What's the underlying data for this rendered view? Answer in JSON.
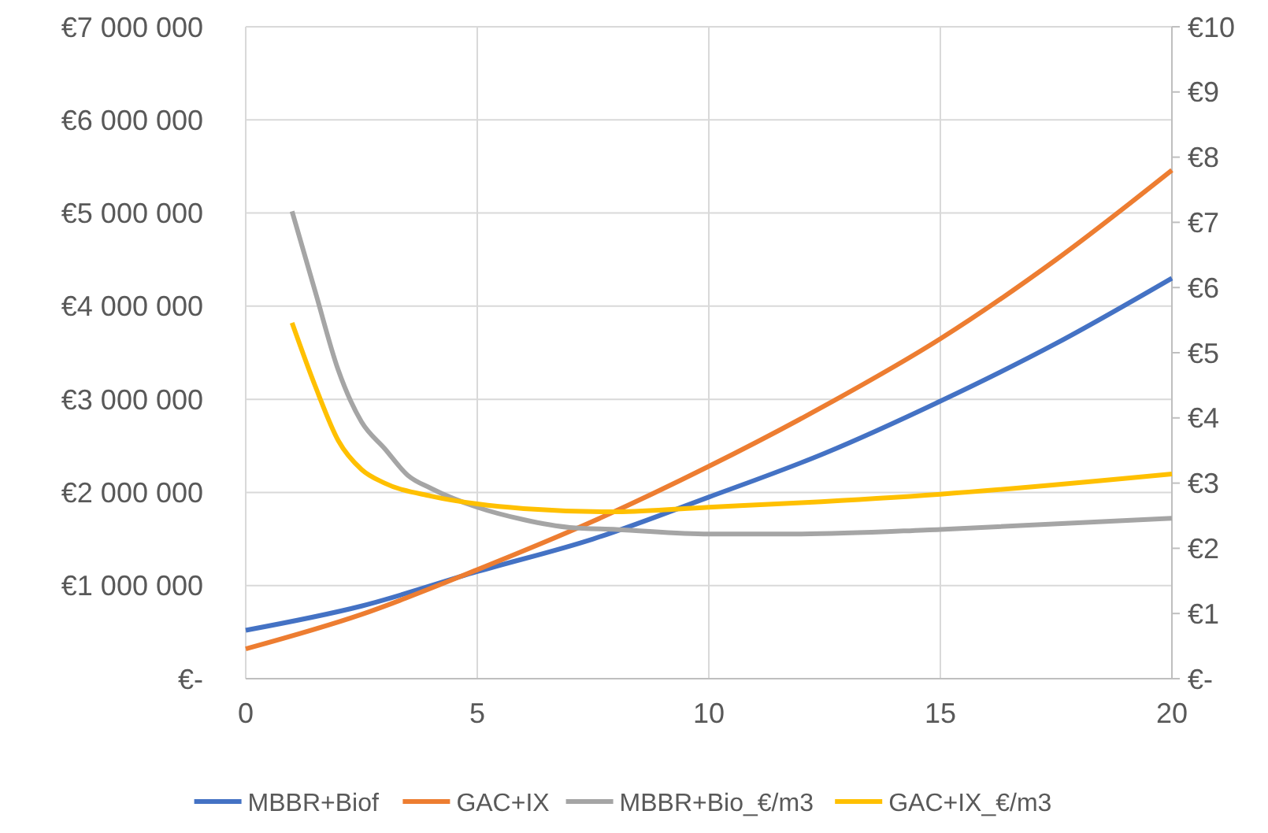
{
  "chart_data": {
    "type": "line",
    "xlim": [
      0,
      20
    ],
    "xticks": [
      0,
      5,
      10,
      15,
      20
    ],
    "ylim": [
      0,
      7000000
    ],
    "yticks": [
      {
        "value": 0,
        "label": "€-"
      },
      {
        "value": 1000000,
        "label": "€1 000 000"
      },
      {
        "value": 2000000,
        "label": "€2 000 000"
      },
      {
        "value": 3000000,
        "label": "€3 000 000"
      },
      {
        "value": 4000000,
        "label": "€4 000 000"
      },
      {
        "value": 5000000,
        "label": "€5 000 000"
      },
      {
        "value": 6000000,
        "label": "€6 000 000"
      },
      {
        "value": 7000000,
        "label": "€7 000 000"
      }
    ],
    "y2lim": [
      0,
      10
    ],
    "y2ticks": [
      {
        "value": 0,
        "label": "€-"
      },
      {
        "value": 1,
        "label": "€1"
      },
      {
        "value": 2,
        "label": "€2"
      },
      {
        "value": 3,
        "label": "€3"
      },
      {
        "value": 4,
        "label": "€4"
      },
      {
        "value": 5,
        "label": "€5"
      },
      {
        "value": 6,
        "label": "€6"
      },
      {
        "value": 7,
        "label": "€7"
      },
      {
        "value": 8,
        "label": "€8"
      },
      {
        "value": 9,
        "label": "€9"
      },
      {
        "value": 10,
        "label": "€10"
      }
    ],
    "grid": true,
    "legend": "bottom",
    "marker": "none",
    "line_style": "solid",
    "series": [
      {
        "name": "MBBR+Biof",
        "color": "#4472c4",
        "x": [
          0,
          2.5,
          5,
          7.5,
          10,
          12.5,
          15,
          17.5,
          20
        ],
        "values": [
          520000,
          780000,
          1150000,
          1500000,
          1950000,
          2420000,
          2980000,
          3600000,
          4300000
        ]
      },
      {
        "name": "GAC+IX",
        "color": "#ed7d31",
        "x": [
          0,
          2.5,
          5,
          7.5,
          10,
          12.5,
          15,
          17.5,
          20
        ],
        "values": [
          320000,
          690000,
          1170000,
          1690000,
          2280000,
          2930000,
          3650000,
          4500000,
          5460000
        ]
      },
      {
        "name": "MBBR+Bio_€/m3",
        "color": "#a5a5a5",
        "axis": "y2",
        "x": [
          1,
          1.5,
          2,
          2.5,
          3,
          3.5,
          4,
          5,
          6,
          7,
          8,
          10,
          12,
          15,
          20
        ],
        "values": [
          7.17,
          5.94,
          4.73,
          3.94,
          3.53,
          3.12,
          2.92,
          2.63,
          2.44,
          2.32,
          2.29,
          2.22,
          2.22,
          2.29,
          2.46
        ]
      },
      {
        "name": "GAC+IX_€/m3",
        "color": "#ffc000",
        "axis": "y2",
        "x": [
          1,
          1.5,
          2,
          2.5,
          3,
          4,
          5,
          6,
          8,
          10,
          12,
          15,
          20
        ],
        "values": [
          5.46,
          4.49,
          3.65,
          3.21,
          3.0,
          2.8,
          2.68,
          2.61,
          2.56,
          2.63,
          2.7,
          2.83,
          3.14
        ]
      }
    ]
  }
}
